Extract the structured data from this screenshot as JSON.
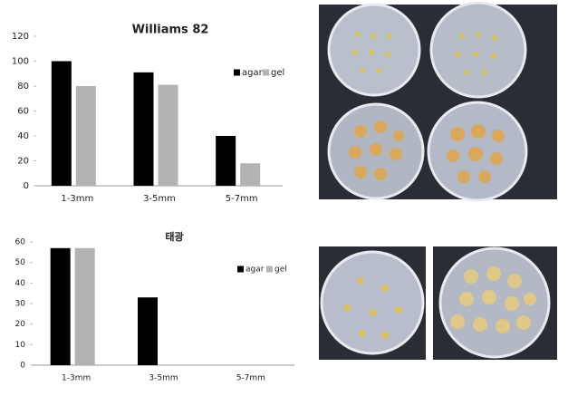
{
  "chart_data": [
    {
      "type": "bar",
      "title": "Williams 82",
      "categories": [
        "1-3mm",
        "3-5mm",
        "5-7mm"
      ],
      "series": [
        {
          "name": "agar",
          "color": "#000000",
          "values": [
            100,
            91,
            40
          ]
        },
        {
          "name": "gel",
          "color": "#b3b3b3",
          "values": [
            80,
            81,
            18
          ]
        }
      ],
      "ylim": [
        0,
        120
      ],
      "yticks": [
        0,
        20,
        40,
        60,
        80,
        100,
        120
      ]
    },
    {
      "type": "bar",
      "title": "태광",
      "categories": [
        "1-3mm",
        "3-5mm",
        "5-7mm"
      ],
      "series": [
        {
          "name": "agar",
          "color": "#000000",
          "values": [
            57,
            33,
            0
          ]
        },
        {
          "name": "gel",
          "color": "#b3b3b3",
          "values": [
            57,
            0,
            0
          ]
        }
      ],
      "ylim": [
        0,
        60
      ],
      "yticks": [
        0,
        10,
        20,
        30,
        40,
        50,
        60
      ]
    }
  ]
}
